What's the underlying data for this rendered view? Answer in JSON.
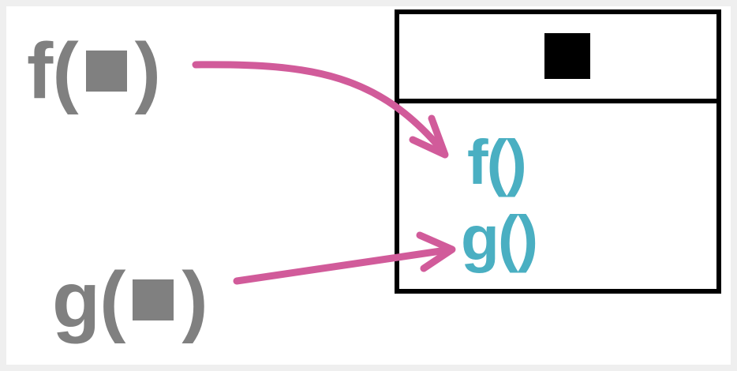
{
  "diagram": {
    "outside_calls": [
      {
        "name": "f",
        "open": "(",
        "close": ")"
      },
      {
        "name": "g",
        "open": "(",
        "close": ")"
      }
    ],
    "methods": [
      {
        "label": "f()"
      },
      {
        "label": "g()"
      }
    ],
    "colors": {
      "call_text": "#808080",
      "method_text": "#4aafc2",
      "arrow": "#d15b9a",
      "box_border": "#000000",
      "background": "#ffffff"
    }
  }
}
